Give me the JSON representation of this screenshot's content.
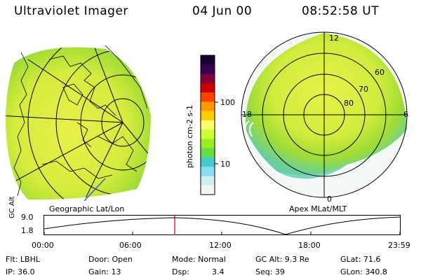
{
  "header": {
    "title": "Ultraviolet Imager",
    "date": "04 Jun 00",
    "time": "08:52:58 UT"
  },
  "left_panel": {
    "label": "Geographic Lat/Lon"
  },
  "right_panel": {
    "label": "Apex MLat/MLT",
    "ring_labels": [
      "60",
      "70",
      "80"
    ],
    "mlt_labels": {
      "top": "12",
      "left": "18",
      "right": "6",
      "bottom": "0"
    }
  },
  "colorbar": {
    "unit_label": "photon cm-2 s-1",
    "tick_labels": [
      "100",
      "10"
    ],
    "colors": [
      "#1a0033",
      "#3a0050",
      "#800040",
      "#cc0000",
      "#ff4000",
      "#ff9900",
      "#ffcc00",
      "#ffff66",
      "#ccff33",
      "#99ee22",
      "#66dd44",
      "#44cccc",
      "#88ddee",
      "#ccf0f4",
      "#f4f4f4"
    ]
  },
  "timeline": {
    "y_axis_label": "GC Alt",
    "y_ticks": [
      "9.0",
      "1.8"
    ],
    "x_ticks": [
      "00:00",
      "06:00",
      "12:00",
      "18:00",
      "23:59"
    ],
    "marker_color": "#cc0000"
  },
  "info": {
    "flt": "Flt: LBHL",
    "door": "Door: Open",
    "mode": "Mode: Normal",
    "gc_alt": "GC Alt: 9.3 Re",
    "glat": "GLat: 71.6",
    "ip": "IP: 36.0",
    "gain": "Gain: 13",
    "dsp": "Dsp:",
    "dsp_value": "3.4",
    "seq": "Seq: 39",
    "glon": "GLon: 340.8"
  }
}
